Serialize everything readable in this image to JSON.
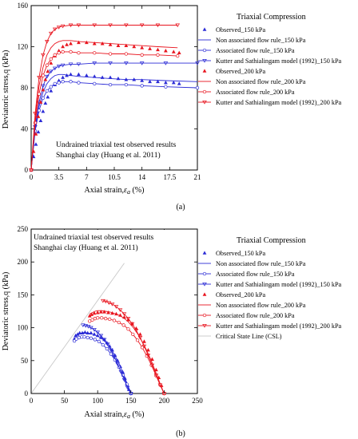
{
  "colors": {
    "blue": "#2b2bd6",
    "red": "#e8141e",
    "csl": "#c8c8c8"
  },
  "panel_a": {
    "caption": "(a)",
    "annotation": [
      "Undrained triaxial test observed results",
      "Shanghai clay  (Huang et al. 2011)"
    ],
    "legend_title": "Triaxial Compression",
    "legend": [
      "Observed_150 kPa",
      "Non associated flow rule_150 kPa",
      "Associated flow rule_150 kPa",
      "Kutter and Sathialingam model (1992)_150 kPa",
      "Observed_200 kPa",
      "Non associated flow rule_200 kPa",
      "Associated flow rule_200 kPa",
      "Kutter and Sathialingam model (1992)_200 kPa"
    ],
    "xlabel": "Axial strain,",
    "xlabel_sym": "ε",
    "xlabel_sub": "a",
    "xlabel_unit": " (%)",
    "ylabel": "Deviatoric stress,q (kPa)",
    "xticks": [
      "0",
      "3.5",
      "7",
      "10.5",
      "14",
      "17.5",
      "21"
    ],
    "yticks": [
      "0",
      "40",
      "80",
      "120",
      "160"
    ]
  },
  "panel_b": {
    "caption": "(b)",
    "annotation": [
      "Undrained triaxial test observed results",
      "Shanghai clay  (Huang et al. 2011)"
    ],
    "legend_title": "Triaxial Compression",
    "legend": [
      "Observed_150 kPa",
      "Non associated flow rule_150 kPa",
      "Associated flow rule_150 kPa",
      "Kutter and Sathialingam model (1992)_150 kPa",
      "Observed_200 kPa",
      "Non associated flow rule_200 kPa",
      "Associated flow rule_200 kPa",
      "Kutter and Sathialingam model (1992)_200 kPa",
      "Critical State Line (CSL)"
    ],
    "xlabel": "Axial strain,",
    "xlabel_sym": "ε",
    "xlabel_sub": "a",
    "xlabel_unit": " (%)",
    "ylabel": "Deviatoric stress,q (kPa)",
    "xticks": [
      "0",
      "50",
      "100",
      "150",
      "200",
      "250"
    ],
    "yticks": [
      "0",
      "50",
      "100",
      "150",
      "200",
      "250"
    ]
  },
  "chart_data": [
    {
      "type": "line",
      "xlim": [
        0,
        21
      ],
      "ylim": [
        0,
        160
      ],
      "series": [
        {
          "name": "Observed_150 kPa",
          "style": "markers-filled",
          "color": "blue",
          "x": [
            0,
            0.3,
            0.6,
            0.9,
            1.2,
            1.5,
            1.8,
            2.1,
            2.5,
            3.0,
            3.5,
            4.0,
            4.5,
            5.0,
            6.0,
            7.0,
            8.0,
            9.0,
            10.0,
            11.0,
            12.0,
            13.0,
            14.0,
            15.0,
            16.0,
            17.0,
            18.0,
            18.7
          ],
          "y": [
            0,
            13,
            25,
            37,
            48,
            57,
            65,
            71,
            77,
            83,
            87,
            90,
            92,
            93,
            93,
            92,
            91,
            90,
            90,
            89,
            88,
            88,
            87,
            86,
            86,
            85,
            85,
            84
          ]
        },
        {
          "name": "Non associated flow rule_150 kPa",
          "style": "line",
          "color": "blue",
          "x": [
            0,
            0.5,
            1.0,
            1.5,
            2.0,
            2.5,
            3.0,
            3.5,
            4.0,
            5.0,
            6.0,
            8.0,
            10.0,
            12.0,
            14.0,
            17.0,
            21.0
          ],
          "y": [
            0,
            40,
            62,
            76,
            84,
            89,
            92,
            93,
            93,
            92,
            91,
            90,
            89,
            88,
            88,
            87,
            86
          ]
        },
        {
          "name": "Associated flow rule_150 kPa",
          "style": "line-open",
          "color": "blue",
          "x": [
            0,
            0.5,
            1.0,
            1.5,
            2.0,
            2.5,
            3.0,
            3.5,
            4.0,
            5.0,
            6.0,
            8.0,
            10.0,
            12.0,
            14.0,
            17.0,
            21.0
          ],
          "y": [
            0,
            38,
            58,
            70,
            77,
            81,
            84,
            85,
            86,
            86,
            85,
            84,
            83,
            83,
            82,
            81,
            80
          ]
        },
        {
          "name": "Kutter and Sathialingam model (1992)_150 kPa",
          "style": "line-triangle",
          "color": "blue",
          "x": [
            0,
            0.5,
            1.0,
            1.5,
            2.0,
            2.5,
            3.0,
            3.5,
            4.0,
            5.0,
            6.0,
            8.0,
            10.0,
            12.0,
            14.0,
            17.0,
            21.0
          ],
          "y": [
            0,
            42,
            66,
            82,
            91,
            96,
            99,
            101,
            102,
            103,
            103,
            104,
            104,
            104,
            104,
            104,
            104
          ]
        },
        {
          "name": "Observed_200 kPa",
          "style": "markers-filled",
          "color": "red",
          "x": [
            0,
            0.3,
            0.6,
            0.9,
            1.2,
            1.5,
            1.8,
            2.1,
            2.5,
            3.0,
            3.5,
            4.0,
            4.5,
            5.0,
            6.0,
            7.0,
            8.0,
            9.0,
            10.0,
            11.0,
            12.0,
            13.0,
            14.0,
            15.0,
            16.0,
            17.0,
            18.0,
            18.7
          ],
          "y": [
            0,
            18,
            35,
            52,
            66,
            78,
            88,
            96,
            104,
            111,
            116,
            120,
            122,
            123,
            124,
            124,
            123,
            123,
            122,
            121,
            121,
            120,
            119,
            118,
            117,
            116,
            115,
            114
          ]
        },
        {
          "name": "Non associated flow rule_200 kPa",
          "style": "line",
          "color": "red",
          "x": [
            0,
            0.5,
            1.0,
            1.5,
            2.0,
            2.5,
            3.0,
            3.5,
            4.0,
            5.0,
            6.0,
            8.0,
            10.0,
            12.0,
            14.0,
            16.0,
            18.5
          ],
          "y": [
            0,
            50,
            82,
            100,
            112,
            119,
            123,
            125,
            126,
            126,
            125,
            124,
            123,
            122,
            121,
            120,
            119
          ]
        },
        {
          "name": "Associated flow rule_200 kPa",
          "style": "line-open",
          "color": "red",
          "x": [
            0,
            0.5,
            1.0,
            1.5,
            2.0,
            2.5,
            3.0,
            3.5,
            4.0,
            5.0,
            6.0,
            8.0,
            10.0,
            12.0,
            14.0,
            16.0,
            18.5
          ],
          "y": [
            0,
            46,
            74,
            92,
            102,
            108,
            112,
            114,
            115,
            115,
            114,
            114,
            113,
            113,
            112,
            112,
            111
          ]
        },
        {
          "name": "Kutter and Sathialingam model (1992)_200 kPa",
          "style": "line-triangle",
          "color": "red",
          "x": [
            0,
            0.5,
            1.0,
            1.5,
            2.0,
            2.5,
            3.0,
            3.5,
            4.0,
            5.0,
            6.0,
            8.0,
            10.0,
            12.0,
            14.0,
            16.0,
            18.5
          ],
          "y": [
            0,
            55,
            90,
            112,
            125,
            133,
            137,
            139,
            140,
            141,
            141,
            141,
            141,
            141,
            141,
            141,
            141
          ]
        }
      ]
    },
    {
      "type": "line",
      "xlim": [
        0,
        250
      ],
      "ylim": [
        0,
        250
      ],
      "series": [
        {
          "name": "Observed_150 kPa",
          "style": "markers-filled",
          "color": "blue",
          "x": [
            65,
            67,
            70,
            73,
            77,
            81,
            85,
            90,
            95,
            100,
            105,
            110,
            114,
            118,
            122,
            126,
            130,
            134,
            138,
            141,
            144,
            147,
            150
          ],
          "y": [
            83,
            88,
            90,
            92,
            92,
            93,
            92,
            92,
            90,
            88,
            85,
            82,
            77,
            72,
            66,
            58,
            50,
            41,
            32,
            23,
            14,
            6,
            0
          ]
        },
        {
          "name": "Non associated flow rule_150 kPa",
          "style": "line",
          "color": "blue",
          "x": [
            65,
            68,
            72,
            76,
            80,
            85,
            90,
            96,
            102,
            108,
            114,
            120,
            126,
            132,
            138,
            144,
            150
          ],
          "y": [
            86,
            89,
            91,
            92,
            93,
            92,
            91,
            89,
            86,
            82,
            76,
            68,
            58,
            46,
            32,
            16,
            0
          ]
        },
        {
          "name": "Associated flow rule_150 kPa",
          "style": "line-open",
          "color": "blue",
          "x": [
            65,
            68,
            72,
            76,
            80,
            85,
            90,
            96,
            102,
            108,
            114,
            120,
            126,
            132,
            138,
            144,
            150
          ],
          "y": [
            80,
            83,
            85,
            86,
            86,
            85,
            84,
            82,
            79,
            74,
            68,
            60,
            51,
            40,
            28,
            14,
            0
          ]
        },
        {
          "name": "Kutter and Sathialingam model (1992)_150 kPa",
          "style": "line-triangle",
          "color": "blue",
          "x": [
            78,
            82,
            86,
            90,
            95,
            100,
            105,
            110,
            115,
            120,
            125,
            130,
            135,
            140,
            145,
            150
          ],
          "y": [
            104,
            103,
            102,
            100,
            97,
            93,
            88,
            82,
            75,
            66,
            56,
            45,
            33,
            21,
            9,
            0
          ]
        },
        {
          "name": "Observed_200 kPa",
          "style": "markers-filled",
          "color": "red",
          "x": [
            88,
            91,
            95,
            100,
            105,
            110,
            116,
            122,
            128,
            134,
            140,
            146,
            152,
            158,
            164,
            170,
            176,
            182,
            188,
            192,
            196,
            200
          ],
          "y": [
            118,
            120,
            122,
            123,
            124,
            124,
            123,
            122,
            121,
            119,
            116,
            112,
            106,
            99,
            90,
            79,
            66,
            52,
            36,
            24,
            12,
            0
          ]
        },
        {
          "name": "Non associated flow rule_200 kPa",
          "style": "line",
          "color": "red",
          "x": [
            88,
            92,
            96,
            100,
            106,
            112,
            118,
            125,
            132,
            139,
            146,
            153,
            160,
            167,
            174,
            181,
            188,
            194,
            200
          ],
          "y": [
            121,
            123,
            125,
            126,
            126,
            125,
            124,
            122,
            119,
            115,
            109,
            101,
            91,
            79,
            65,
            49,
            31,
            15,
            0
          ]
        },
        {
          "name": "Associated flow rule_200 kPa",
          "style": "line-open",
          "color": "red",
          "x": [
            88,
            92,
            96,
            100,
            106,
            112,
            118,
            125,
            132,
            139,
            146,
            153,
            160,
            167,
            174,
            181,
            188,
            194,
            200
          ],
          "y": [
            110,
            112,
            114,
            115,
            115,
            114,
            113,
            111,
            108,
            104,
            98,
            90,
            81,
            70,
            57,
            43,
            27,
            13,
            0
          ]
        },
        {
          "name": "Kutter and Sathialingam model (1992)_200 kPa",
          "style": "line-triangle",
          "color": "red",
          "x": [
            108,
            112,
            117,
            122,
            128,
            134,
            140,
            146,
            152,
            158,
            164,
            170,
            176,
            182,
            188,
            194,
            200
          ],
          "y": [
            141,
            140,
            138,
            136,
            132,
            127,
            121,
            114,
            106,
            96,
            85,
            72,
            58,
            43,
            28,
            13,
            0
          ]
        },
        {
          "name": "Critical State Line (CSL)",
          "style": "csl",
          "color": "csl",
          "x": [
            0,
            140
          ],
          "y": [
            0,
            198
          ]
        }
      ]
    }
  ]
}
